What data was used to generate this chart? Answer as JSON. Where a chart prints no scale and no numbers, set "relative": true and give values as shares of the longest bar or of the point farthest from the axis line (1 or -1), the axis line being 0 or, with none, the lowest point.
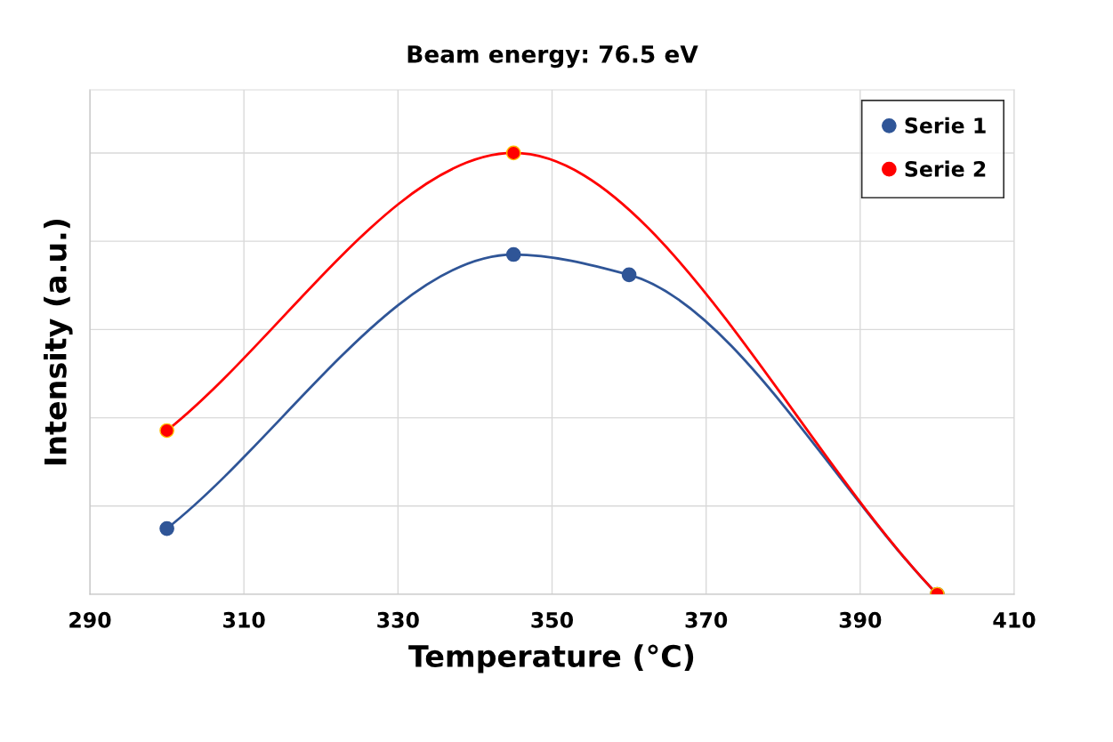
{
  "chart_data": {
    "type": "line",
    "title": "Beam energy: 76.5 eV",
    "xlabel": "Temperature (°C)",
    "ylabel": "Intensity (a.u.)",
    "relative": true,
    "xlim": [
      290,
      410
    ],
    "xticks": [
      290,
      310,
      330,
      350,
      370,
      390,
      410
    ],
    "grid": true,
    "legend": "top right",
    "marker": "circle",
    "line_style": "solid",
    "series": [
      {
        "name": "Serie 1",
        "color": "#2f5597",
        "x": [
          300,
          345,
          360,
          400
        ],
        "values": [
          0.149,
          0.77,
          0.724,
          0
        ]
      },
      {
        "name": "Serie 2",
        "color": "#ff0000",
        "x": [
          300,
          345,
          400
        ],
        "values": [
          0.371,
          1,
          0
        ]
      }
    ]
  }
}
